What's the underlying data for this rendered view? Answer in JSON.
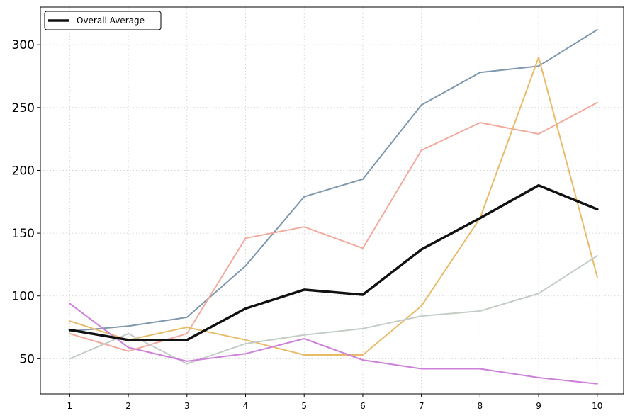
{
  "chart_data": {
    "type": "line",
    "title": "",
    "xlabel": "",
    "ylabel": "",
    "x": [
      1,
      2,
      3,
      4,
      5,
      6,
      7,
      8,
      9,
      10
    ],
    "xlim": [
      0.5,
      10.45
    ],
    "ylim": [
      22,
      330
    ],
    "yticks": [
      50,
      100,
      150,
      200,
      250,
      300
    ],
    "grid": true,
    "legend": {
      "position": "top-left",
      "entries": [
        "Overall Average"
      ]
    },
    "series": [
      {
        "name": "",
        "color": "#7f98ad",
        "width": 2,
        "values": [
          72,
          76,
          83,
          124,
          179,
          193,
          252,
          278,
          283,
          312
        ]
      },
      {
        "name": "",
        "color": "#f2aa9e",
        "width": 2,
        "values": [
          70,
          56,
          70,
          146,
          155,
          138,
          216,
          238,
          229,
          254
        ]
      },
      {
        "name": "",
        "color": "#e8bb6a",
        "width": 2,
        "values": [
          80,
          65,
          75,
          65,
          53,
          53,
          92,
          162,
          290,
          115
        ]
      },
      {
        "name": "",
        "color": "#c4ccc6",
        "width": 2,
        "values": [
          50,
          70,
          46,
          62,
          69,
          74,
          84,
          88,
          102,
          132
        ]
      },
      {
        "name": "",
        "color": "#cc80d8",
        "width": 2,
        "values": [
          94,
          59,
          48,
          54,
          66,
          49,
          42,
          42,
          35,
          30
        ]
      },
      {
        "name": "Overall Average",
        "color": "#111111",
        "width": 3.5,
        "values": [
          73,
          65,
          65,
          90,
          105,
          101,
          137,
          162,
          188,
          169
        ]
      }
    ]
  }
}
